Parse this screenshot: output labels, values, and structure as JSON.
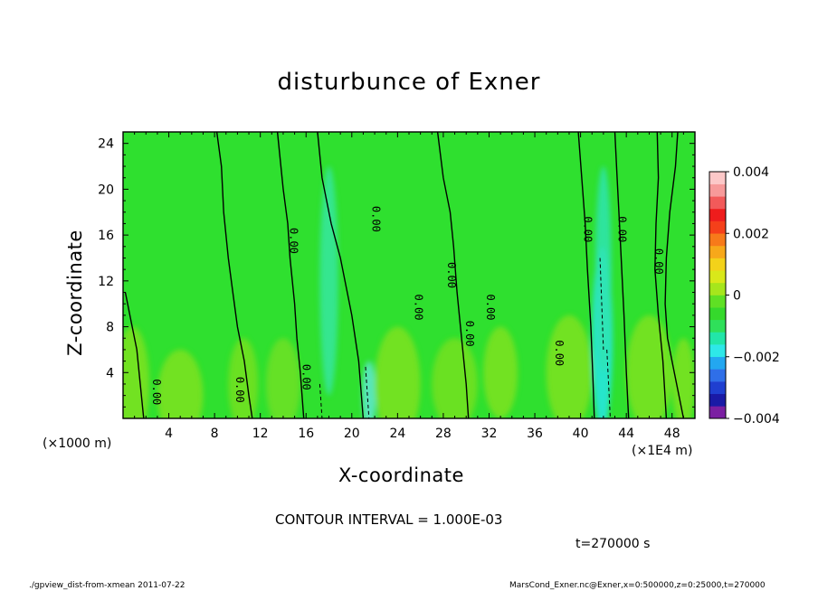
{
  "chart_data": {
    "type": "contour",
    "title": "disturbunce of Exner",
    "xlabel": "X-coordinate",
    "ylabel": "Z-coordinate",
    "x_unit_left": "(×1000 m)",
    "x_unit_right": "(×1E4 m)",
    "xlim": [
      0,
      50
    ],
    "ylim": [
      0,
      25
    ],
    "x_ticks": [
      4,
      8,
      12,
      16,
      20,
      24,
      28,
      32,
      36,
      40,
      44,
      48
    ],
    "y_ticks": [
      4,
      8,
      12,
      16,
      20,
      24
    ],
    "colorbar": {
      "range": [
        -0.004,
        0.004
      ],
      "labels": [
        "0.004",
        "0.002",
        "0",
        "−0.002",
        "−0.004"
      ],
      "colors": [
        "#7b1fa2",
        "#1a1aa6",
        "#1f3fd0",
        "#2f6fe8",
        "#23a7f0",
        "#2ee8e8",
        "#22e6a8",
        "#2fe05a",
        "#35d92c",
        "#5fe024",
        "#a6e61c",
        "#d9e81a",
        "#f3d21a",
        "#f7a81a",
        "#f77a1a",
        "#f5401a",
        "#ee1c1c",
        "#f25a5a",
        "#f79a9a",
        "#fcc8c8"
      ]
    },
    "contour_labels": [
      {
        "text": "0.00",
        "x": 14.6,
        "z": 15.5
      },
      {
        "text": "0.00",
        "x": 21.8,
        "z": 17.4
      },
      {
        "text": "0.00",
        "x": 40.3,
        "z": 16.5
      },
      {
        "text": "0.00",
        "x": 43.3,
        "z": 16.5
      },
      {
        "text": "0.00",
        "x": 46.5,
        "z": 13.7
      },
      {
        "text": "0.00",
        "x": 28.4,
        "z": 12.5
      },
      {
        "text": "0.00",
        "x": 25.5,
        "z": 9.7
      },
      {
        "text": "0.00",
        "x": 30.0,
        "z": 7.4
      },
      {
        "text": "0.00",
        "x": 31.8,
        "z": 9.7
      },
      {
        "text": "0.00",
        "x": 37.8,
        "z": 5.7
      },
      {
        "text": "0.00",
        "x": 15.7,
        "z": 3.6
      },
      {
        "text": "0.00",
        "x": 9.9,
        "z": 2.5
      },
      {
        "text": "0.00",
        "x": 2.6,
        "z": 2.3
      }
    ],
    "contour_interval_text": "CONTOUR INTERVAL = 1.000E-03",
    "time_text": "t=270000 s"
  },
  "footer": {
    "left": "./gpview_dist-from-xmean  2011-07-22",
    "right": "MarsCond_Exner.nc@Exner,x=0:500000,z=0:25000,t=270000"
  }
}
